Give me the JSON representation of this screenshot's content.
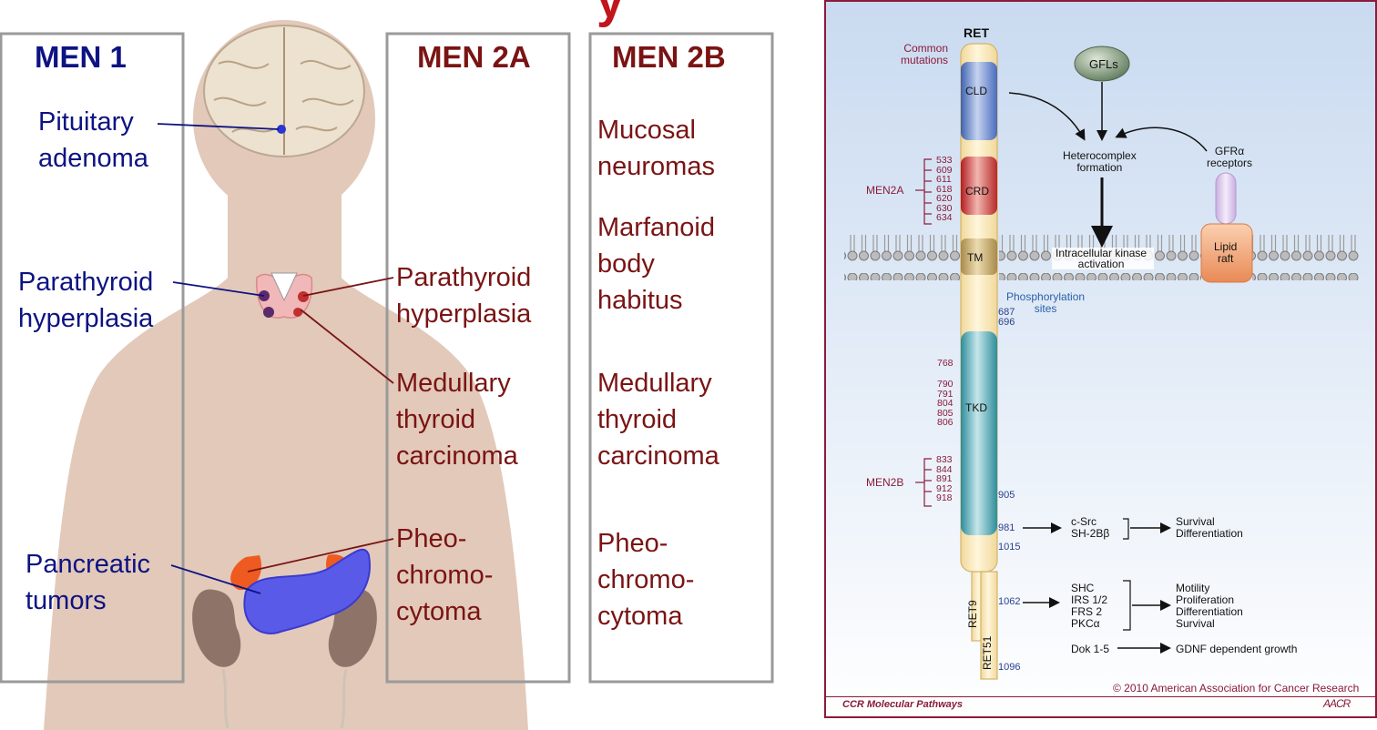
{
  "left_panel": {
    "title_fragment": "y",
    "men1": {
      "header": "MEN 1",
      "pituitary": [
        "Pituitary",
        "adenoma"
      ],
      "parathyroid": [
        "Parathyroid",
        "hyperplasia"
      ],
      "pancreatic": [
        "Pancreatic",
        "tumors"
      ]
    },
    "men2a": {
      "header": "MEN 2A",
      "parathyroid": [
        "Parathyroid",
        "hyperplasia"
      ],
      "medullary": [
        "Medullary",
        "thyroid",
        "carcinoma"
      ],
      "pheo": [
        "Pheo-",
        "chromo-",
        "cytoma"
      ]
    },
    "men2b": {
      "header": "MEN 2B",
      "mucosal": [
        "Mucosal",
        "neuromas"
      ],
      "marfanoid": [
        "Marfanoid",
        "body",
        "habitus"
      ],
      "medullary": [
        "Medullary",
        "thyroid",
        "carcinoma"
      ],
      "pheo": [
        "Pheo-",
        "chromo-",
        "cytoma"
      ]
    }
  },
  "right_panel": {
    "ret_label": "RET",
    "common_mutations": [
      "Common",
      "mutations"
    ],
    "domains": {
      "cld": "CLD",
      "crd": "CRD",
      "tm": "TM",
      "tkd": "TKD"
    },
    "men2a_label": "MEN2A",
    "men2a_codons": [
      "533",
      "609",
      "611",
      "618",
      "620",
      "630",
      "634"
    ],
    "men2b_label": "MEN2B",
    "men2b_codons": [
      "833",
      "844",
      "891",
      "912",
      "918"
    ],
    "tkd_codons": [
      "768",
      "790",
      "791",
      "804",
      "805",
      "806"
    ],
    "phospho_label": [
      "Phosphorylation",
      "sites"
    ],
    "phospho_sites": {
      "s687": "687",
      "s696": "696",
      "s905": "905",
      "s981": "981",
      "s1015": "1015",
      "s1062": "1062",
      "s1096": "1096"
    },
    "gfls": "GFLs",
    "heterocomplex": [
      "Heterocomplex",
      "formation"
    ],
    "gfra": [
      "GFRα",
      "receptors"
    ],
    "lipid_raft": [
      "Lipid",
      "raft"
    ],
    "kinase": [
      "Intracellular kinase",
      "activation"
    ],
    "isoforms": {
      "ret9": "RET9",
      "ret51": "RET51"
    },
    "y981_partners": [
      "c-Src",
      "SH-2Bβ"
    ],
    "y981_effects": [
      "Survival",
      "Differentiation"
    ],
    "y1062_partners": [
      "SHC",
      "IRS 1/2",
      "FRS 2",
      "PKCα"
    ],
    "y1062_effects": [
      "Motility",
      "Proliferation",
      "Differentiation",
      "Survival"
    ],
    "dok": "Dok 1-5",
    "gdnf": "GDNF dependent growth",
    "copyright": "© 2010 American Association for Cancer Research",
    "footer": "CCR Molecular Pathways",
    "logo": "AACR"
  },
  "colors": {
    "men1_text": "#0d1382",
    "men2_text": "#7a1414",
    "body_silhouette": "#e2c9b9",
    "mutation_red": "#8a1b3a",
    "phospho_blue": "#2a3f8f",
    "right_bg": "#d4e2f2"
  }
}
